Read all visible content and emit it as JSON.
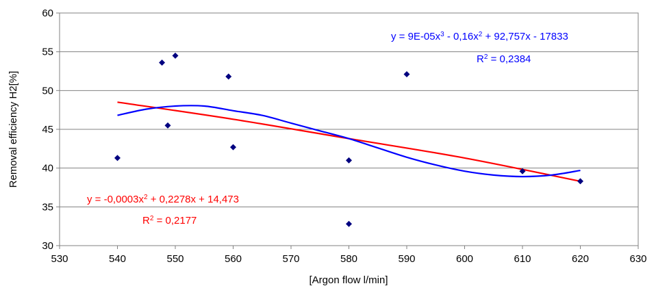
{
  "chart_data": {
    "type": "scatter",
    "title": "",
    "xlabel": "[Argon flow l/min]",
    "ylabel": "Removal efficiency H2[%]",
    "xlim": [
      530,
      630
    ],
    "ylim": [
      30,
      60
    ],
    "x_ticks": [
      "530",
      "540",
      "550",
      "560",
      "570",
      "580",
      "590",
      "600",
      "610",
      "620",
      "630"
    ],
    "y_ticks": [
      "30",
      "35",
      "40",
      "45",
      "50",
      "55",
      "60"
    ],
    "grid": "horizontal",
    "legend": "none",
    "marker_color": "#000080",
    "series": [
      {
        "values": [
          {
            "x": 540,
            "y": 41.3
          },
          {
            "x": 547.7,
            "y": 53.6
          },
          {
            "x": 548.7,
            "y": 45.5
          },
          {
            "x": 550,
            "y": 54.5
          },
          {
            "x": 559.2,
            "y": 51.8
          },
          {
            "x": 560,
            "y": 42.7
          },
          {
            "x": 580,
            "y": 41.0
          },
          {
            "x": 580,
            "y": 32.8
          },
          {
            "x": 590,
            "y": 52.1
          },
          {
            "x": 610,
            "y": 39.6
          },
          {
            "x": 620,
            "y": 38.3
          }
        ]
      }
    ],
    "trendlines": [
      {
        "kind": "polynomial-2",
        "color": "#ff0000",
        "coefficients": [
          -0.0003,
          0.2278,
          14.473
        ],
        "equation_prefix": "y = -0,0003x",
        "equation_sup": "2",
        "equation_suffix": " + 0,2278x + 14,473",
        "r2_prefix": "R",
        "r2_sup": "2",
        "r2_suffix": " = 0,2177",
        "curve": [
          {
            "x": 540,
            "y": 48.5
          },
          {
            "x": 560,
            "y": 46.3
          },
          {
            "x": 580,
            "y": 43.8
          },
          {
            "x": 600,
            "y": 41.3
          },
          {
            "x": 620,
            "y": 38.3
          }
        ]
      },
      {
        "kind": "polynomial-3",
        "color": "#0000ff",
        "coefficients": [
          9e-05,
          -0.16,
          92.757,
          -17833
        ],
        "equation_prefix": "y = 9E-05x",
        "equation_sup1": "3",
        "equation_mid": " - 0,16x",
        "equation_sup2": "2",
        "equation_suffix": " + 92,757x - 17833",
        "r2_prefix": "R",
        "r2_sup": "2",
        "r2_suffix": " = 0,2384",
        "curve": [
          {
            "x": 540,
            "y": 46.8
          },
          {
            "x": 545,
            "y": 47.6
          },
          {
            "x": 550,
            "y": 48.0
          },
          {
            "x": 555,
            "y": 48.0
          },
          {
            "x": 560,
            "y": 47.4
          },
          {
            "x": 565,
            "y": 46.8
          },
          {
            "x": 570,
            "y": 45.8
          },
          {
            "x": 575,
            "y": 44.8
          },
          {
            "x": 580,
            "y": 43.8
          },
          {
            "x": 585,
            "y": 42.6
          },
          {
            "x": 590,
            "y": 41.4
          },
          {
            "x": 595,
            "y": 40.4
          },
          {
            "x": 600,
            "y": 39.6
          },
          {
            "x": 605,
            "y": 39.1
          },
          {
            "x": 610,
            "y": 38.9
          },
          {
            "x": 615,
            "y": 39.1
          },
          {
            "x": 620,
            "y": 39.7
          }
        ]
      }
    ]
  }
}
